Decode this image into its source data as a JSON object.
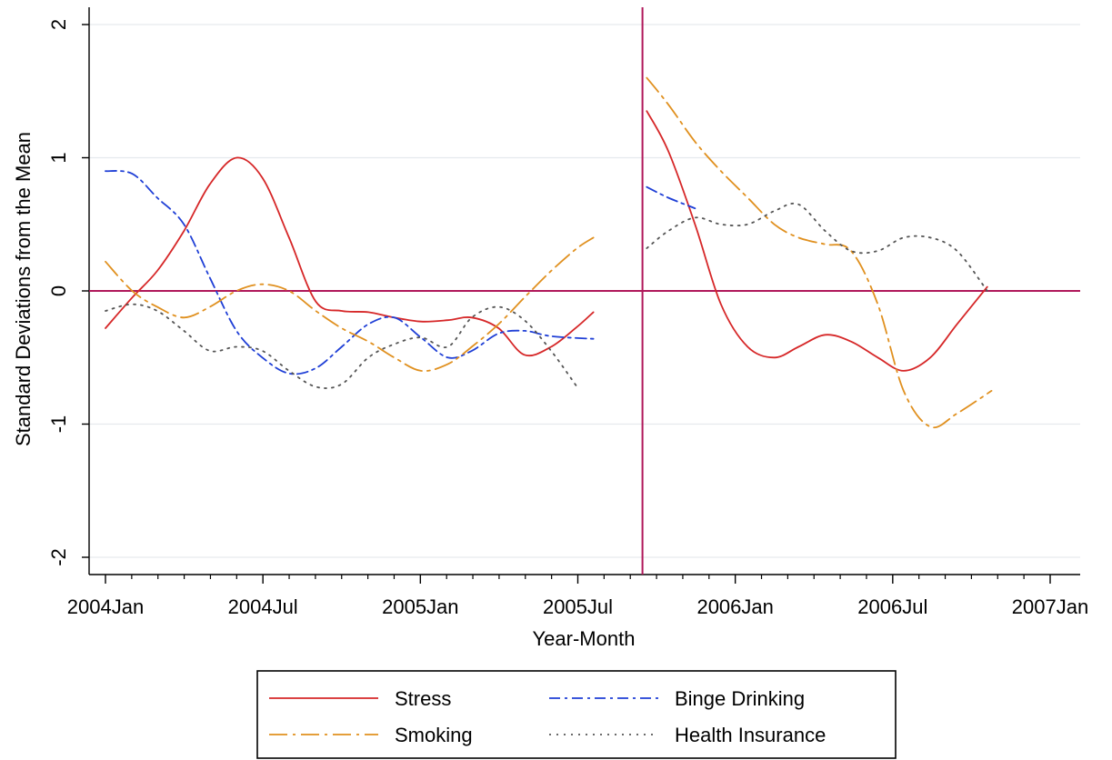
{
  "chart_data": {
    "type": "line",
    "title": "",
    "xlabel": "Year-Month",
    "ylabel": "Standard Deviations from the Mean",
    "x_ticks": [
      "2004Jan",
      "2004Jul",
      "2005Jan",
      "2005Jul",
      "2006Jan",
      "2006Jul",
      "2007Jan"
    ],
    "y_ticks": [
      2,
      1,
      0,
      -1,
      -2
    ],
    "xlim": [
      "2004-01",
      "2007-01"
    ],
    "ylim": [
      -2.1,
      2.1
    ],
    "grid": "horizontal",
    "reference_lines": {
      "y": 0,
      "x": "2005-09-15"
    },
    "legend_position": "bottom",
    "series": [
      {
        "name": "Stress",
        "color": "#d62728",
        "style": "solid",
        "segments": [
          [
            [
              "2004-01-01",
              -0.28
            ],
            [
              "2004-02-01",
              -0.05
            ],
            [
              "2004-03-01",
              0.15
            ],
            [
              "2004-04-01",
              0.45
            ],
            [
              "2004-05-01",
              0.8
            ],
            [
              "2004-06-01",
              1.0
            ],
            [
              "2004-07-01",
              0.85
            ],
            [
              "2004-08-01",
              0.4
            ],
            [
              "2004-09-01",
              -0.08
            ],
            [
              "2004-10-01",
              -0.15
            ],
            [
              "2004-11-01",
              -0.16
            ],
            [
              "2004-12-01",
              -0.2
            ],
            [
              "2005-01-01",
              -0.23
            ],
            [
              "2005-02-01",
              -0.22
            ],
            [
              "2005-03-01",
              -0.2
            ],
            [
              "2005-04-01",
              -0.28
            ],
            [
              "2005-05-01",
              -0.48
            ],
            [
              "2005-06-01",
              -0.42
            ],
            [
              "2005-07-01",
              -0.27
            ],
            [
              "2005-07-20",
              -0.16
            ]
          ],
          [
            [
              "2005-09-20",
              1.35
            ],
            [
              "2005-10-15",
              1.05
            ],
            [
              "2005-11-15",
              0.5
            ],
            [
              "2005-12-15",
              -0.1
            ],
            [
              "2006-01-15",
              -0.42
            ],
            [
              "2006-02-15",
              -0.5
            ],
            [
              "2006-03-15",
              -0.42
            ],
            [
              "2006-04-15",
              -0.33
            ],
            [
              "2006-05-15",
              -0.38
            ],
            [
              "2006-06-15",
              -0.5
            ],
            [
              "2006-07-15",
              -0.6
            ],
            [
              "2006-08-15",
              -0.5
            ],
            [
              "2006-09-15",
              -0.25
            ],
            [
              "2006-10-20",
              0.03
            ]
          ]
        ]
      },
      {
        "name": "Binge Drinking",
        "color": "#1f3fd6",
        "style": "dashdot",
        "segments": [
          [
            [
              "2004-01-01",
              0.9
            ],
            [
              "2004-02-01",
              0.88
            ],
            [
              "2004-03-01",
              0.7
            ],
            [
              "2004-04-01",
              0.5
            ],
            [
              "2004-05-01",
              0.1
            ],
            [
              "2004-06-01",
              -0.3
            ],
            [
              "2004-07-01",
              -0.5
            ],
            [
              "2004-08-01",
              -0.62
            ],
            [
              "2004-09-01",
              -0.58
            ],
            [
              "2004-10-01",
              -0.42
            ],
            [
              "2004-11-01",
              -0.25
            ],
            [
              "2004-12-01",
              -0.2
            ],
            [
              "2005-01-01",
              -0.35
            ],
            [
              "2005-02-01",
              -0.5
            ],
            [
              "2005-03-01",
              -0.45
            ],
            [
              "2005-04-01",
              -0.32
            ],
            [
              "2005-05-01",
              -0.3
            ],
            [
              "2005-06-01",
              -0.34
            ],
            [
              "2005-07-20",
              -0.36
            ]
          ],
          [
            [
              "2005-09-20",
              0.78
            ],
            [
              "2005-10-15",
              0.7
            ],
            [
              "2005-11-15",
              0.62
            ]
          ]
        ]
      },
      {
        "name": "Smoking",
        "color": "#e0901f",
        "style": "longdash",
        "segments": [
          [
            [
              "2004-01-01",
              0.22
            ],
            [
              "2004-02-01",
              0.0
            ],
            [
              "2004-03-01",
              -0.12
            ],
            [
              "2004-04-01",
              -0.2
            ],
            [
              "2004-05-01",
              -0.12
            ],
            [
              "2004-06-01",
              0.0
            ],
            [
              "2004-07-01",
              0.05
            ],
            [
              "2004-08-01",
              0.0
            ],
            [
              "2004-09-01",
              -0.15
            ],
            [
              "2004-10-01",
              -0.28
            ],
            [
              "2004-11-01",
              -0.38
            ],
            [
              "2004-12-01",
              -0.5
            ],
            [
              "2005-01-01",
              -0.6
            ],
            [
              "2005-02-01",
              -0.55
            ],
            [
              "2005-03-01",
              -0.42
            ],
            [
              "2005-04-01",
              -0.25
            ],
            [
              "2005-05-01",
              -0.05
            ],
            [
              "2005-06-01",
              0.15
            ],
            [
              "2005-07-01",
              0.32
            ],
            [
              "2005-07-20",
              0.4
            ]
          ],
          [
            [
              "2005-09-20",
              1.6
            ],
            [
              "2005-10-15",
              1.4
            ],
            [
              "2005-11-15",
              1.12
            ],
            [
              "2005-12-15",
              0.9
            ],
            [
              "2006-01-15",
              0.7
            ],
            [
              "2006-02-15",
              0.5
            ],
            [
              "2006-03-15",
              0.4
            ],
            [
              "2006-04-15",
              0.35
            ],
            [
              "2006-05-15",
              0.3
            ],
            [
              "2006-06-15",
              -0.1
            ],
            [
              "2006-07-15",
              -0.75
            ],
            [
              "2006-08-15",
              -1.02
            ],
            [
              "2006-09-15",
              -0.92
            ],
            [
              "2006-10-25",
              -0.75
            ]
          ]
        ]
      },
      {
        "name": "Health Insurance",
        "color": "#555555",
        "style": "dotted",
        "segments": [
          [
            [
              "2004-01-01",
              -0.15
            ],
            [
              "2004-02-01",
              -0.1
            ],
            [
              "2004-03-01",
              -0.15
            ],
            [
              "2004-04-01",
              -0.3
            ],
            [
              "2004-05-01",
              -0.45
            ],
            [
              "2004-06-01",
              -0.42
            ],
            [
              "2004-07-01",
              -0.45
            ],
            [
              "2004-08-01",
              -0.6
            ],
            [
              "2004-09-01",
              -0.72
            ],
            [
              "2004-10-01",
              -0.7
            ],
            [
              "2004-11-01",
              -0.5
            ],
            [
              "2004-12-01",
              -0.4
            ],
            [
              "2005-01-01",
              -0.35
            ],
            [
              "2005-02-01",
              -0.42
            ],
            [
              "2005-03-01",
              -0.2
            ],
            [
              "2005-04-01",
              -0.12
            ],
            [
              "2005-05-01",
              -0.22
            ],
            [
              "2005-06-01",
              -0.45
            ],
            [
              "2005-07-01",
              -0.72
            ]
          ],
          [
            [
              "2005-09-20",
              0.32
            ],
            [
              "2005-10-15",
              0.45
            ],
            [
              "2005-11-15",
              0.55
            ],
            [
              "2005-12-15",
              0.5
            ],
            [
              "2006-01-15",
              0.5
            ],
            [
              "2006-02-15",
              0.6
            ],
            [
              "2006-03-15",
              0.65
            ],
            [
              "2006-04-15",
              0.45
            ],
            [
              "2006-05-15",
              0.3
            ],
            [
              "2006-06-15",
              0.3
            ],
            [
              "2006-07-15",
              0.4
            ],
            [
              "2006-08-15",
              0.4
            ],
            [
              "2006-09-15",
              0.3
            ],
            [
              "2006-10-20",
              0.0
            ]
          ]
        ]
      }
    ]
  },
  "legend": {
    "items": [
      {
        "label": "Stress",
        "series": 0
      },
      {
        "label": "Binge Drinking",
        "series": 1
      },
      {
        "label": "Smoking",
        "series": 2
      },
      {
        "label": "Health Insurance",
        "series": 3
      }
    ]
  },
  "colors": {
    "reference_line": "#b0185a",
    "grid": "#e6eaed",
    "axis": "#000000"
  }
}
